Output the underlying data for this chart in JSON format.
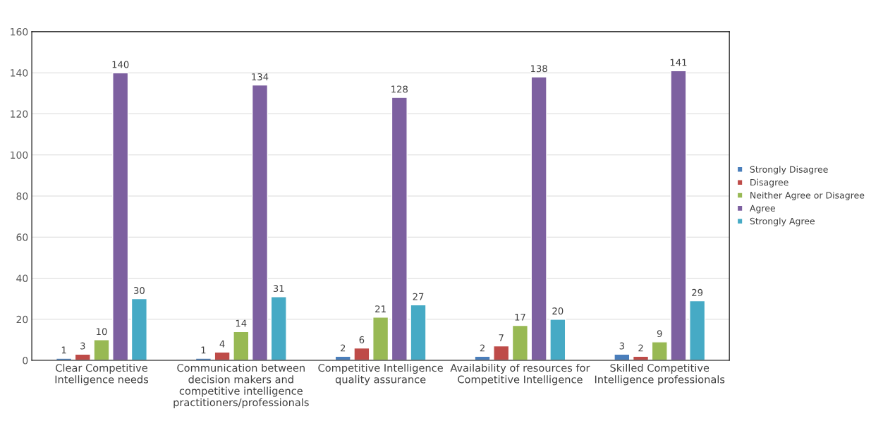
{
  "chart_data": {
    "type": "bar",
    "categories": [
      "Clear Competitive\nIntelligence needs",
      "Communication between\ndecision makers and\ncompetitive intelligence\npractitioners/professionals",
      "Competitive Intelligence\nquality assurance",
      "Availability of resources for\nCompetitive Intelligence",
      "Skilled Competitive\nIntelligence professionals"
    ],
    "series": [
      {
        "name": "Strongly Disagree",
        "color": "#4a7ebb",
        "values": [
          1,
          1,
          2,
          2,
          3
        ]
      },
      {
        "name": "Disagree",
        "color": "#be4b48",
        "values": [
          3,
          4,
          6,
          7,
          2
        ]
      },
      {
        "name": "Neither Agree or Disagree",
        "color": "#98b954",
        "values": [
          10,
          14,
          21,
          17,
          9
        ]
      },
      {
        "name": "Agree",
        "color": "#7d60a0",
        "values": [
          140,
          134,
          128,
          138,
          141
        ]
      },
      {
        "name": "Strongly Agree",
        "color": "#46aac5",
        "values": [
          30,
          31,
          27,
          20,
          29
        ]
      }
    ],
    "ylim": [
      0,
      160
    ],
    "yticks": [
      0,
      20,
      40,
      60,
      80,
      100,
      120,
      140,
      160
    ],
    "grid": "y",
    "legend": "right",
    "data_labels": true
  }
}
